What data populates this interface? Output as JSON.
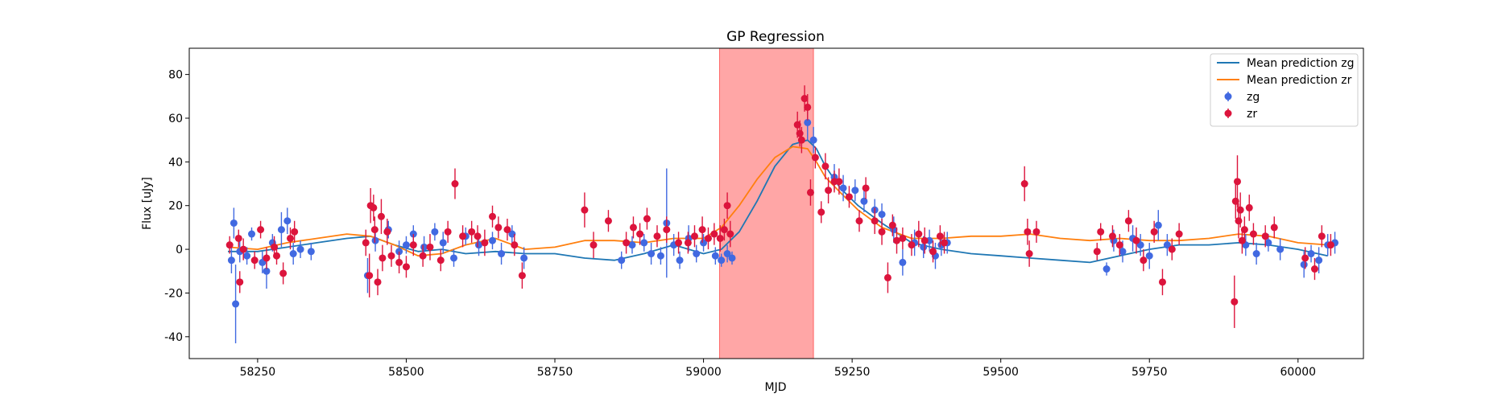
{
  "chart_data": {
    "type": "scatter",
    "title": "GP Regression",
    "xlabel": "MJD",
    "ylabel": "Flux [uJy]",
    "xlim": [
      58135,
      60110
    ],
    "ylim": [
      -50,
      92
    ],
    "xticks": [
      58250,
      58500,
      58750,
      59000,
      59250,
      59500,
      59750,
      60000
    ],
    "yticks": [
      -40,
      -20,
      0,
      20,
      40,
      60,
      80
    ],
    "shaded_region": {
      "x0": 59027,
      "x1": 59185,
      "color": "#ff0000",
      "alpha": 0.35
    },
    "legend": {
      "position": "top-right",
      "entries": [
        {
          "label": "Mean prediction zg",
          "kind": "line",
          "color": "#1f77b4"
        },
        {
          "label": "Mean prediction zr",
          "kind": "line",
          "color": "#ff7f0e"
        },
        {
          "label": "zg",
          "kind": "errorbar",
          "color": "#4169e1"
        },
        {
          "label": "zr",
          "kind": "errorbar",
          "color": "#dc143c"
        }
      ]
    },
    "series": [
      {
        "name": "Mean prediction zg",
        "kind": "line",
        "color": "#1f77b4",
        "x": [
          58200,
          58250,
          58300,
          58350,
          58400,
          58440,
          58480,
          58520,
          58560,
          58600,
          58650,
          58700,
          58750,
          58800,
          58850,
          58900,
          58950,
          59000,
          59030,
          59060,
          59090,
          59120,
          59150,
          59175,
          59190,
          59205,
          59230,
          59260,
          59300,
          59350,
          59400,
          59450,
          59500,
          59550,
          59600,
          59650,
          59700,
          59750,
          59800,
          59850,
          59900,
          59950,
          60000,
          60050
        ],
        "y": [
          -1,
          -1,
          1,
          3,
          5,
          6,
          2,
          -1,
          0,
          -2,
          -1,
          -2,
          -2,
          -4,
          -5,
          -2,
          2,
          -2,
          0,
          8,
          22,
          38,
          48,
          50,
          46,
          38,
          28,
          20,
          12,
          3,
          0,
          -2,
          -3,
          -4,
          -5,
          -6,
          -3,
          0,
          2,
          2,
          3,
          2,
          0,
          -3
        ]
      },
      {
        "name": "Mean prediction zr",
        "kind": "line",
        "color": "#ff7f0e",
        "x": [
          58200,
          58250,
          58300,
          58350,
          58400,
          58440,
          58480,
          58520,
          58560,
          58600,
          58650,
          58700,
          58750,
          58800,
          58850,
          58900,
          58950,
          59000,
          59030,
          59060,
          59090,
          59120,
          59150,
          59175,
          59190,
          59205,
          59230,
          59260,
          59300,
          59350,
          59400,
          59450,
          59500,
          59550,
          59600,
          59650,
          59700,
          59750,
          59800,
          59850,
          59900,
          59950,
          60000,
          60050
        ],
        "y": [
          1,
          0,
          3,
          5,
          7,
          6,
          2,
          -3,
          -2,
          2,
          5,
          0,
          1,
          4,
          4,
          3,
          5,
          5,
          10,
          20,
          32,
          42,
          47,
          46,
          40,
          33,
          26,
          18,
          10,
          5,
          5,
          6,
          6,
          7,
          5,
          4,
          5,
          4,
          4,
          5,
          7,
          6,
          3,
          2
        ]
      },
      {
        "name": "zg",
        "kind": "errorbar",
        "color": "#4169e1",
        "points": [
          [
            58206,
            -5,
            6
          ],
          [
            58210,
            12,
            7
          ],
          [
            58213,
            -25,
            18
          ],
          [
            58220,
            -1,
            5
          ],
          [
            58232,
            -3,
            4
          ],
          [
            58240,
            7,
            3
          ],
          [
            58258,
            -6,
            5
          ],
          [
            58265,
            -10,
            8
          ],
          [
            58275,
            3,
            4
          ],
          [
            58290,
            9,
            8
          ],
          [
            58300,
            13,
            6
          ],
          [
            58310,
            -2,
            5
          ],
          [
            58322,
            0,
            4
          ],
          [
            58340,
            -1,
            4
          ],
          [
            58435,
            -12,
            8
          ],
          [
            58448,
            4,
            5
          ],
          [
            58470,
            9,
            4
          ],
          [
            58488,
            -1,
            5
          ],
          [
            58500,
            2,
            4
          ],
          [
            58512,
            7,
            4
          ],
          [
            58530,
            1,
            5
          ],
          [
            58548,
            8,
            4
          ],
          [
            58562,
            3,
            5
          ],
          [
            58580,
            -4,
            4
          ],
          [
            58600,
            6,
            4
          ],
          [
            58622,
            2,
            5
          ],
          [
            58645,
            4,
            4
          ],
          [
            58660,
            -2,
            5
          ],
          [
            58678,
            7,
            4
          ],
          [
            58698,
            -4,
            5
          ],
          [
            58862,
            -5,
            4
          ],
          [
            58880,
            2,
            4
          ],
          [
            58900,
            3,
            4
          ],
          [
            58912,
            -2,
            5
          ],
          [
            58928,
            -3,
            4
          ],
          [
            58938,
            12,
            25
          ],
          [
            58950,
            2,
            5
          ],
          [
            58960,
            -5,
            4
          ],
          [
            58975,
            5,
            6
          ],
          [
            58988,
            -2,
            4
          ],
          [
            59000,
            3,
            4
          ],
          [
            59020,
            -3,
            4
          ],
          [
            59030,
            -5,
            3
          ],
          [
            59040,
            -2,
            4
          ],
          [
            59048,
            -4,
            3
          ],
          [
            59175,
            58,
            8
          ],
          [
            59185,
            50,
            6
          ],
          [
            59220,
            33,
            6
          ],
          [
            59235,
            28,
            6
          ],
          [
            59255,
            27,
            5
          ],
          [
            59270,
            22,
            5
          ],
          [
            59288,
            18,
            5
          ],
          [
            59300,
            16,
            5
          ],
          [
            59320,
            9,
            6
          ],
          [
            59335,
            -6,
            6
          ],
          [
            59355,
            3,
            6
          ],
          [
            59370,
            1,
            5
          ],
          [
            59380,
            4,
            5
          ],
          [
            59390,
            -3,
            6
          ],
          [
            59400,
            2,
            5
          ],
          [
            59410,
            3,
            5
          ],
          [
            59678,
            -9,
            3
          ],
          [
            59690,
            4,
            5
          ],
          [
            59705,
            -1,
            5
          ],
          [
            59722,
            5,
            6
          ],
          [
            59735,
            2,
            5
          ],
          [
            59750,
            -3,
            6
          ],
          [
            59765,
            11,
            7
          ],
          [
            59780,
            2,
            5
          ],
          [
            59912,
            2,
            5
          ],
          [
            59930,
            -2,
            5
          ],
          [
            59950,
            3,
            4
          ],
          [
            59970,
            0,
            5
          ],
          [
            60010,
            -7,
            6
          ],
          [
            60022,
            -2,
            4
          ],
          [
            60035,
            -5,
            6
          ],
          [
            60050,
            2,
            5
          ],
          [
            60062,
            3,
            5
          ]
        ]
      },
      {
        "name": "zr",
        "kind": "errorbar",
        "color": "#dc143c",
        "points": [
          [
            58203,
            2,
            4
          ],
          [
            58218,
            5,
            4
          ],
          [
            58220,
            -15,
            5
          ],
          [
            58226,
            0,
            5
          ],
          [
            58245,
            -5,
            4
          ],
          [
            58255,
            9,
            4
          ],
          [
            58265,
            -4,
            5
          ],
          [
            58278,
            1,
            5
          ],
          [
            58282,
            -3,
            4
          ],
          [
            58293,
            -11,
            5
          ],
          [
            58305,
            5,
            5
          ],
          [
            58312,
            8,
            5
          ],
          [
            58432,
            3,
            6
          ],
          [
            58438,
            -12,
            10
          ],
          [
            58440,
            20,
            8
          ],
          [
            58445,
            19,
            6
          ],
          [
            58447,
            9,
            6
          ],
          [
            58452,
            -15,
            6
          ],
          [
            58458,
            15,
            8
          ],
          [
            58460,
            -4,
            6
          ],
          [
            58468,
            8,
            6
          ],
          [
            58475,
            -3,
            5
          ],
          [
            58488,
            -6,
            5
          ],
          [
            58500,
            -8,
            5
          ],
          [
            58512,
            2,
            5
          ],
          [
            58528,
            -3,
            5
          ],
          [
            58540,
            1,
            6
          ],
          [
            58558,
            -5,
            5
          ],
          [
            58570,
            8,
            5
          ],
          [
            58582,
            30,
            7
          ],
          [
            58595,
            6,
            5
          ],
          [
            58610,
            8,
            5
          ],
          [
            58620,
            6,
            5
          ],
          [
            58632,
            3,
            6
          ],
          [
            58645,
            15,
            5
          ],
          [
            58655,
            10,
            5
          ],
          [
            58670,
            9,
            5
          ],
          [
            58682,
            2,
            5
          ],
          [
            58695,
            -12,
            6
          ],
          [
            58800,
            18,
            8
          ],
          [
            58815,
            2,
            6
          ],
          [
            58840,
            13,
            5
          ],
          [
            58870,
            3,
            5
          ],
          [
            58882,
            10,
            5
          ],
          [
            58893,
            7,
            5
          ],
          [
            58905,
            14,
            5
          ],
          [
            58922,
            6,
            5
          ],
          [
            58938,
            9,
            6
          ],
          [
            58958,
            3,
            5
          ],
          [
            58974,
            3,
            5
          ],
          [
            58985,
            6,
            5
          ],
          [
            58998,
            9,
            6
          ],
          [
            59008,
            5,
            5
          ],
          [
            59018,
            7,
            5
          ],
          [
            59028,
            5,
            6
          ],
          [
            59035,
            9,
            5
          ],
          [
            59040,
            20,
            6
          ],
          [
            59045,
            7,
            6
          ],
          [
            59158,
            57,
            6
          ],
          [
            59162,
            53,
            6
          ],
          [
            59165,
            50,
            6
          ],
          [
            59170,
            69,
            6
          ],
          [
            59175,
            65,
            6
          ],
          [
            59180,
            26,
            6
          ],
          [
            59188,
            42,
            5
          ],
          [
            59198,
            17,
            5
          ],
          [
            59205,
            38,
            6
          ],
          [
            59210,
            27,
            6
          ],
          [
            59220,
            31,
            5
          ],
          [
            59228,
            31,
            6
          ],
          [
            59245,
            24,
            5
          ],
          [
            59262,
            13,
            5
          ],
          [
            59273,
            28,
            5
          ],
          [
            59288,
            13,
            6
          ],
          [
            59300,
            8,
            6
          ],
          [
            59310,
            -13,
            7
          ],
          [
            59318,
            11,
            5
          ],
          [
            59325,
            4,
            6
          ],
          [
            59335,
            5,
            5
          ],
          [
            59350,
            2,
            5
          ],
          [
            59362,
            7,
            6
          ],
          [
            59372,
            4,
            6
          ],
          [
            59386,
            -1,
            5
          ],
          [
            59398,
            6,
            5
          ],
          [
            59405,
            3,
            5
          ],
          [
            59540,
            30,
            8
          ],
          [
            59545,
            8,
            6
          ],
          [
            59548,
            -2,
            6
          ],
          [
            59560,
            8,
            5
          ],
          [
            59662,
            -1,
            4
          ],
          [
            59668,
            8,
            4
          ],
          [
            59688,
            6,
            5
          ],
          [
            59700,
            2,
            5
          ],
          [
            59715,
            13,
            5
          ],
          [
            59728,
            4,
            6
          ],
          [
            59740,
            -5,
            5
          ],
          [
            59758,
            8,
            5
          ],
          [
            59772,
            -15,
            6
          ],
          [
            59788,
            0,
            5
          ],
          [
            59800,
            7,
            5
          ],
          [
            59893,
            -24,
            12
          ],
          [
            59895,
            22,
            8
          ],
          [
            59898,
            31,
            12
          ],
          [
            59900,
            13,
            8
          ],
          [
            59903,
            18,
            8
          ],
          [
            59906,
            4,
            6
          ],
          [
            59910,
            9,
            6
          ],
          [
            59918,
            19,
            6
          ],
          [
            59925,
            7,
            5
          ],
          [
            59945,
            6,
            5
          ],
          [
            59960,
            10,
            5
          ],
          [
            60012,
            -4,
            5
          ],
          [
            60028,
            -9,
            5
          ],
          [
            60040,
            6,
            5
          ],
          [
            60055,
            2,
            5
          ]
        ]
      }
    ]
  }
}
